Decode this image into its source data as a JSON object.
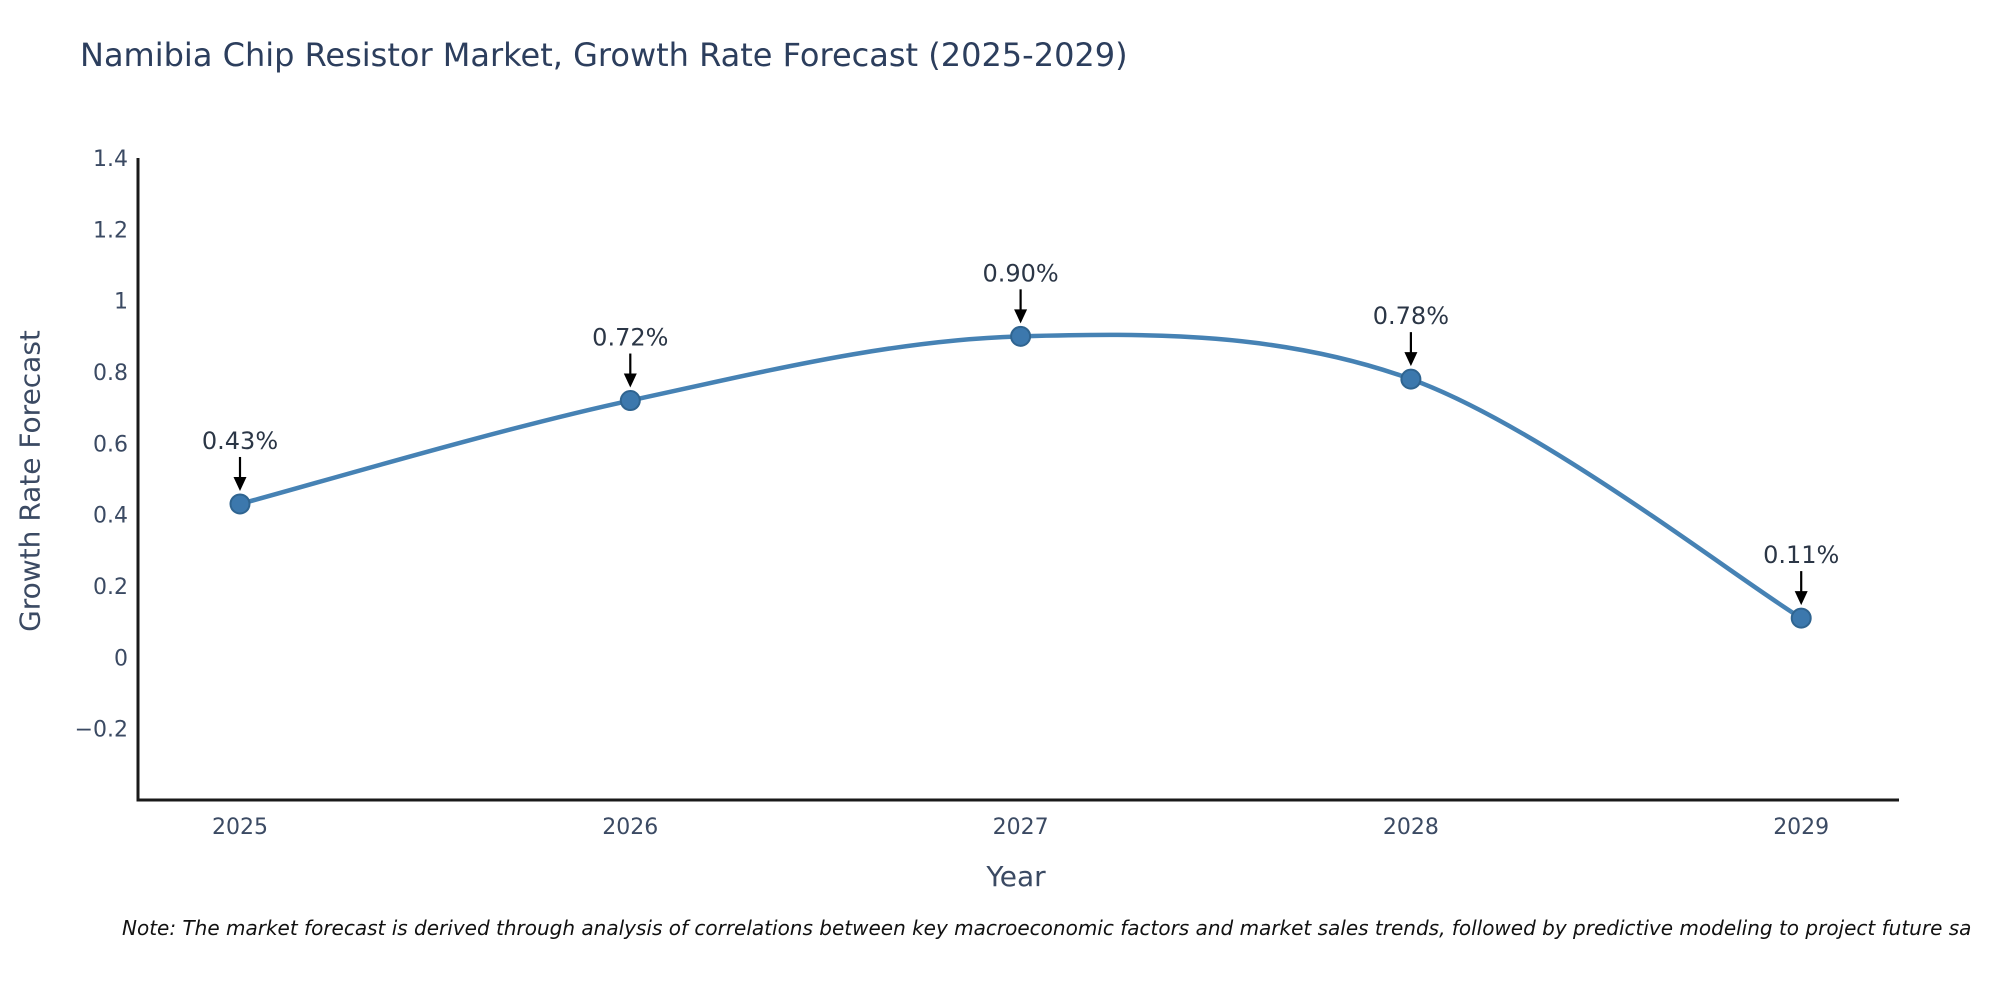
{
  "chart_data": {
    "type": "line",
    "title": "Namibia Chip Resistor Market, Growth Rate Forecast (2025-2029)",
    "xlabel": "Year",
    "ylabel": "Growth Rate Forecast",
    "categories": [
      "2025",
      "2026",
      "2027",
      "2028",
      "2029"
    ],
    "series": [
      {
        "name": "Growth Rate Forecast",
        "values": [
          0.43,
          0.72,
          0.9,
          0.78,
          0.11
        ]
      }
    ],
    "data_labels": [
      "0.43%",
      "0.72%",
      "0.90%",
      "0.78%",
      "0.11%"
    ],
    "yticks": [
      {
        "value": -0.2,
        "label": "−0.2"
      },
      {
        "value": 0,
        "label": "0"
      },
      {
        "value": 0.2,
        "label": "0.2"
      },
      {
        "value": 0.4,
        "label": "0.4"
      },
      {
        "value": 0.6,
        "label": "0.6"
      },
      {
        "value": 0.8,
        "label": "0.8"
      },
      {
        "value": 1,
        "label": "1"
      },
      {
        "value": 1.2,
        "label": "1.2"
      },
      {
        "value": 1.4,
        "label": "1.4"
      }
    ],
    "ylim": [
      -0.4,
      1.4
    ],
    "grid": false,
    "legend": "none",
    "colors": {
      "line": "#4682b4",
      "marker_fill": "#3c78ad",
      "marker_edge": "#2f6490",
      "axis": "#1a1a1a",
      "arrow": "#000000",
      "tick_text": "#3b4a63",
      "annotation_text": "#2b3646",
      "title_text": "#2c3e5d"
    },
    "note": "Note: The market forecast is derived through analysis of correlations between key macroeconomic factors and market sales trends, followed by predictive modeling to project future sa"
  }
}
